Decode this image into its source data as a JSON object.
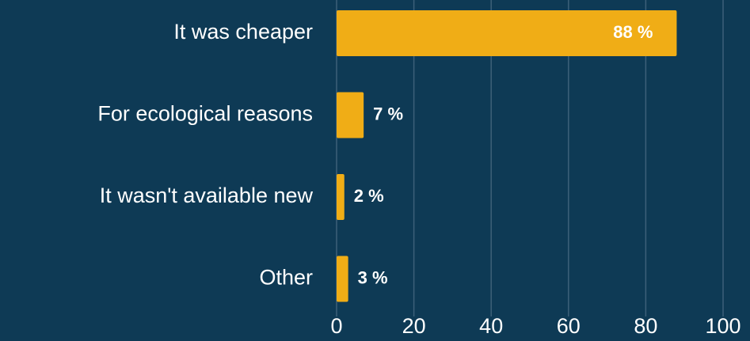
{
  "chart_data": {
    "type": "bar",
    "orientation": "horizontal",
    "categories": [
      "It was cheaper",
      "For ecological reasons",
      "It wasn't available new",
      "Other"
    ],
    "values": [
      88,
      7,
      2,
      3
    ],
    "value_labels": [
      "88 %",
      "7 %",
      "2 %",
      "3 %"
    ],
    "color": "#f0ad16",
    "xlim": [
      0,
      100
    ],
    "xticks": [
      0,
      20,
      40,
      60,
      80,
      100
    ],
    "grid": true
  }
}
